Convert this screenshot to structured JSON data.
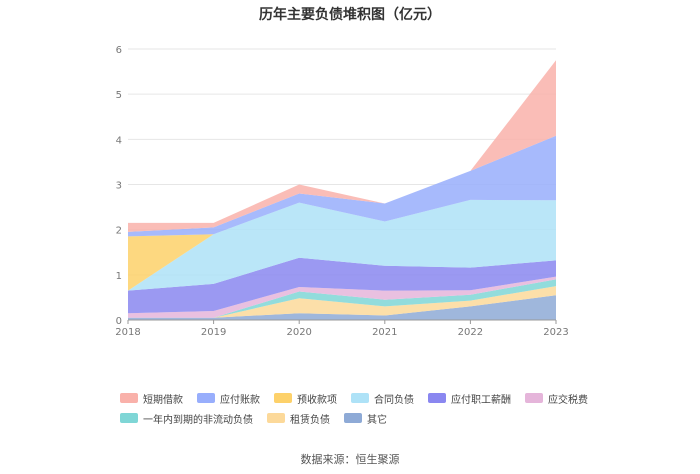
{
  "source_text": "数据来源：恒生聚源",
  "chart_data": {
    "type": "area",
    "stacked": true,
    "title": "历年主要负债堆积图（亿元）",
    "xlabel": "",
    "ylabel": "",
    "x": [
      "2018",
      "2019",
      "2020",
      "2021",
      "2022",
      "2023"
    ],
    "ylim": [
      0,
      6
    ],
    "yticks": [
      0,
      1,
      2,
      3,
      4,
      5,
      6
    ],
    "grid": true,
    "legend_position": "bottom",
    "series": [
      {
        "name": "其它",
        "color": "#8eaad6",
        "values": [
          0.05,
          0.05,
          0.15,
          0.1,
          0.3,
          0.55
        ]
      },
      {
        "name": "租赁负债",
        "color": "#fcd99a",
        "values": [
          0.0,
          0.0,
          0.33,
          0.2,
          0.13,
          0.2
        ]
      },
      {
        "name": "一年内到期的非流动负债",
        "color": "#7fd6d6",
        "values": [
          0.0,
          0.0,
          0.15,
          0.15,
          0.13,
          0.15
        ]
      },
      {
        "name": "应交税费",
        "color": "#e5b5da",
        "values": [
          0.1,
          0.15,
          0.1,
          0.2,
          0.1,
          0.06
        ]
      },
      {
        "name": "应付职工薪酬",
        "color": "#8a87f0",
        "values": [
          0.5,
          0.6,
          0.65,
          0.55,
          0.5,
          0.36
        ]
      },
      {
        "name": "合同负债",
        "color": "#aee2f7",
        "values": [
          0.0,
          1.1,
          1.22,
          0.98,
          1.5,
          1.33
        ]
      },
      {
        "name": "预收款项",
        "color": "#fdd16a",
        "values": [
          1.2,
          0.0,
          0.0,
          0.0,
          0.0,
          0.0
        ]
      },
      {
        "name": "应付账款",
        "color": "#98aefc",
        "values": [
          0.1,
          0.15,
          0.2,
          0.4,
          0.64,
          1.43
        ]
      },
      {
        "name": "短期借款",
        "color": "#f9b1aa",
        "values": [
          0.2,
          0.1,
          0.2,
          0.0,
          0.0,
          1.67
        ]
      }
    ],
    "legend_order": [
      "短期借款",
      "应付账款",
      "预收款项",
      "合同负债",
      "应付职工薪酬",
      "应交税费",
      "一年内到期的非流动负债",
      "租赁负债",
      "其它"
    ]
  }
}
